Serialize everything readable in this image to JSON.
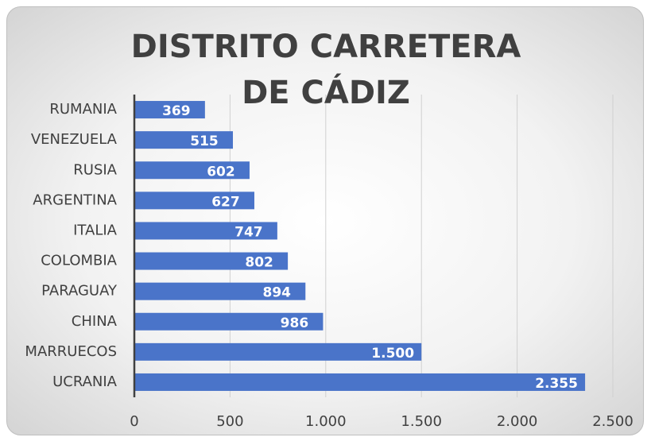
{
  "chart_data": {
    "type": "bar",
    "orientation": "horizontal",
    "title": "DISTRITO CARRETERA DE CÁDIZ",
    "categories": [
      "RUMANIA",
      "VENEZUELA",
      "RUSIA",
      "ARGENTINA",
      "ITALIA",
      "COLOMBIA",
      "PARAGUAY",
      "CHINA",
      "MARRUECOS",
      "UCRANIA"
    ],
    "values": [
      369,
      515,
      602,
      627,
      747,
      802,
      894,
      986,
      1500,
      2355
    ],
    "value_labels": [
      "369",
      "515",
      "602",
      "627",
      "747",
      "802",
      "894",
      "986",
      "1.500",
      "2.355"
    ],
    "color": "#4a74c9",
    "xlim": [
      0,
      2500
    ],
    "xticks": [
      0,
      500,
      {
        "value": 1000,
        "label": "1.000"
      },
      {
        "value": 1500,
        "label": "1.500"
      },
      {
        "value": 2000,
        "label": "2.000"
      },
      {
        "value": 2500,
        "label": "2.500"
      }
    ],
    "grid": true
  }
}
